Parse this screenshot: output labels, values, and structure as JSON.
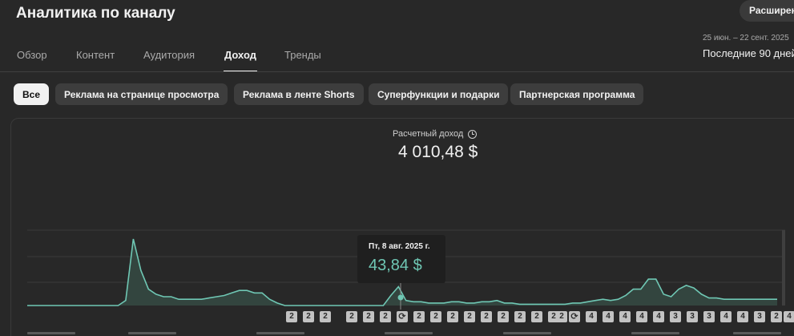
{
  "header": {
    "title": "Аналитика по каналу",
    "advanced_button": "Расширен"
  },
  "tabs": [
    {
      "label": "Обзор",
      "active": false
    },
    {
      "label": "Контент",
      "active": false
    },
    {
      "label": "Аудитория",
      "active": false
    },
    {
      "label": "Доход",
      "active": true
    },
    {
      "label": "Тренды",
      "active": false
    }
  ],
  "date_range": {
    "dates": "25 июн. – 22 сент. 2025",
    "label": "Последние 90 дней"
  },
  "filter_chips": [
    {
      "label": "Все",
      "active": true
    },
    {
      "label": "Реклама на странице просмотра",
      "active": false
    },
    {
      "label": "Реклама в ленте Shorts",
      "active": false
    },
    {
      "label": "Суперфункции и подарки",
      "active": false
    },
    {
      "label": "Партнерская программа",
      "active": false
    }
  ],
  "metric": {
    "label": "Расчетный доход",
    "value": "4 010,48 $"
  },
  "tooltip": {
    "date": "Пт, 8 авг. 2025 г.",
    "value": "43,84 $"
  },
  "chart_data": {
    "type": "area",
    "color": "#6fc7b4",
    "fill": "#33453f",
    "ylabel": "",
    "values": [
      0,
      0,
      0,
      0,
      0,
      0,
      0,
      0,
      0,
      0,
      0,
      0,
      0,
      4,
      53,
      28,
      13,
      9,
      7,
      7,
      5,
      5,
      5,
      5,
      6,
      7,
      8,
      10,
      12,
      12,
      10,
      10,
      5,
      2,
      0,
      0,
      0,
      0,
      0,
      0,
      0,
      0,
      0,
      0,
      0,
      0,
      0,
      0,
      8,
      15,
      4,
      3,
      3,
      2,
      2,
      2,
      3,
      3,
      2,
      2,
      3,
      3,
      4,
      2,
      2,
      1,
      1,
      1,
      1,
      1,
      1,
      1,
      2,
      2,
      3,
      4,
      5,
      4,
      5,
      8,
      13,
      13,
      21,
      21,
      9,
      7,
      13,
      16,
      14,
      9,
      6,
      6,
      5,
      5,
      5,
      5,
      5,
      5,
      5,
      5
    ],
    "ylim": [
      0,
      60
    ]
  },
  "event_markers": [
    "2",
    "2",
    "2",
    "2",
    "2",
    "2",
    "sync",
    "2",
    "2",
    "2",
    "2",
    "2",
    "2",
    "2",
    "2",
    "2",
    "2",
    "sync",
    "4",
    "4",
    "4",
    "4",
    "4",
    "3",
    "3",
    "3",
    "4",
    "4",
    "3",
    "2",
    "4",
    "4",
    "3"
  ]
}
